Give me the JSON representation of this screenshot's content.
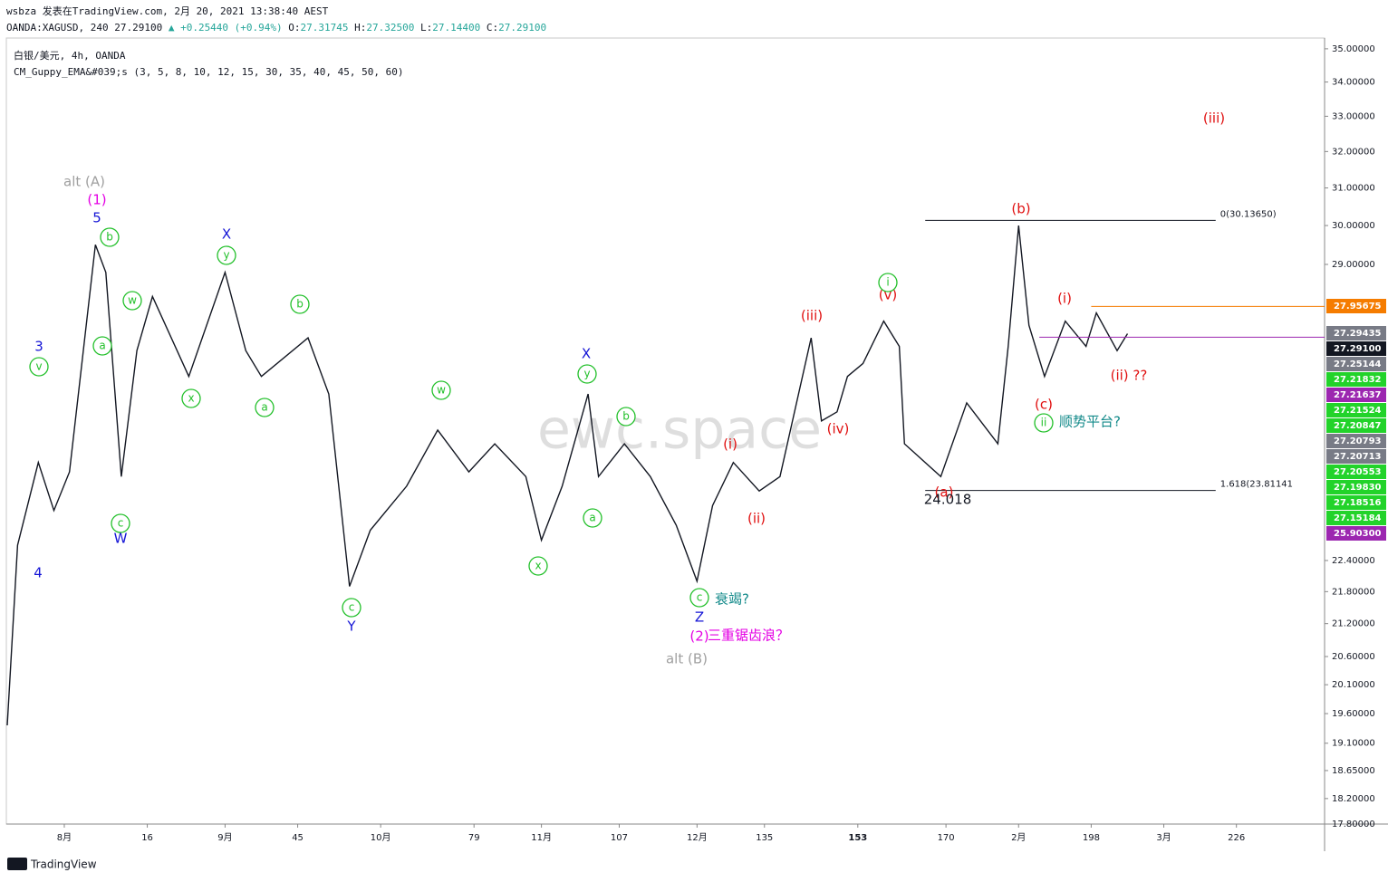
{
  "header": {
    "publisher": "wsbza 发表在TradingView.com, 2月 20, 2021 13:38:40 AEST",
    "symbol": "OANDA:XAGUSD, 240",
    "last": "27.29100",
    "change": "▲ +0.25440 (+0.94%)",
    "ohlc": [
      "O:",
      "27.31745",
      "H:",
      "27.32500",
      "L:",
      "27.14400",
      "C:",
      "27.29100"
    ],
    "pane_title": "白银/美元, 4h, OANDA",
    "indicator": "CM_Guppy_EMA&#039;s (3, 5, 8, 10, 12, 15, 30, 35, 40, 45, 50, 60)"
  },
  "watermark": "ewc.space",
  "footer": "TradingView",
  "chart_data": {
    "type": "line",
    "log_scale": true,
    "grid": false,
    "xlim": [
      -11,
      243
    ],
    "ylim": [
      17.8,
      35.33
    ],
    "xticks": [
      {
        "value": 0,
        "label": "8月"
      },
      16,
      {
        "value": 31,
        "label": "9月"
      },
      45,
      {
        "value": 61,
        "label": "10月"
      },
      79,
      {
        "value": 92,
        "label": "11月"
      },
      107,
      {
        "value": 122,
        "label": "12月"
      },
      135,
      153,
      170,
      {
        "value": 184,
        "label": "2月"
      },
      198,
      {
        "value": 212,
        "label": "3月"
      },
      226
    ],
    "xtick_bold": [
      153
    ],
    "yticks": [
      {
        "value": 35,
        "label": "35.00000"
      },
      {
        "value": 34,
        "label": "34.00000"
      },
      {
        "value": 33,
        "label": "33.00000"
      },
      {
        "value": 32,
        "label": "32.00000"
      },
      {
        "value": 31,
        "label": "31.00000"
      },
      {
        "value": 30,
        "label": "30.00000"
      },
      {
        "value": 29,
        "label": "29.00000"
      },
      {
        "value": 22.4,
        "label": "22.40000"
      },
      {
        "value": 21.8,
        "label": "21.80000"
      },
      {
        "value": 21.2,
        "label": "21.20000"
      },
      {
        "value": 20.6,
        "label": "20.60000"
      },
      {
        "value": 20.1,
        "label": "20.10000"
      },
      {
        "value": 19.6,
        "label": "19.60000"
      },
      {
        "value": 19.1,
        "label": "19.10000"
      },
      {
        "value": 18.65,
        "label": "18.65000"
      },
      {
        "value": 18.2,
        "label": "18.20000"
      },
      {
        "value": 17.8,
        "label": "17.80000"
      }
    ],
    "series": [
      {
        "name": "XAGUSD",
        "color": "#131722",
        "x": [
          -11,
          -9,
          -5,
          -2,
          1,
          6,
          8,
          11,
          14,
          17,
          24,
          31,
          35,
          38,
          47,
          51,
          55,
          59,
          66,
          72,
          78,
          83,
          89,
          92,
          96,
          101,
          103,
          108,
          113,
          118,
          122,
          125,
          129,
          134,
          138,
          144,
          146,
          149,
          151,
          154,
          158,
          161,
          162,
          169,
          174,
          180,
          182,
          184,
          186,
          189,
          193,
          197,
          199,
          203,
          205
        ],
        "values": [
          19.4,
          22.7,
          24.4,
          23.4,
          24.2,
          29.5,
          28.8,
          24.1,
          26.9,
          28.2,
          26.3,
          28.8,
          26.9,
          26.3,
          27.2,
          25.9,
          21.9,
          23.0,
          23.9,
          25.1,
          24.2,
          24.8,
          24.1,
          22.8,
          23.9,
          25.9,
          24.1,
          24.8,
          24.1,
          23.1,
          22.0,
          23.5,
          24.4,
          23.8,
          24.1,
          27.2,
          25.3,
          25.5,
          26.3,
          26.6,
          27.6,
          27.0,
          24.8,
          24.1,
          25.7,
          24.8,
          27.0,
          30.0,
          27.5,
          26.3,
          27.6,
          27.0,
          27.8,
          26.9,
          27.3
        ]
      }
    ],
    "levels": [
      {
        "value": 30.1365,
        "label": "0(30.13650)",
        "color": "#131722",
        "from": 166,
        "to": 222
      },
      {
        "value": 23.81141,
        "label": "1.618(23.81141",
        "color": "#131722",
        "from": 166,
        "to": 222
      },
      {
        "value": 27.95675,
        "color": "#f57c00",
        "from": 198,
        "to": 243
      },
      {
        "value": 27.21637,
        "color": "#9c27b0",
        "from": 188,
        "to": 243
      }
    ],
    "price_badges": [
      {
        "label": "27.95675",
        "color": "#f57c00"
      },
      {
        "label": "27.29435",
        "color": "#787b86"
      },
      {
        "label": "27.29100",
        "color": "#131722"
      },
      {
        "label": "27.25144",
        "color": "#787b86"
      },
      {
        "label": "27.21832",
        "color": "#22d32a"
      },
      {
        "label": "27.21637",
        "color": "#9c27b0"
      },
      {
        "label": "27.21524",
        "color": "#22d32a"
      },
      {
        "label": "27.20847",
        "color": "#22d32a"
      },
      {
        "label": "27.20793",
        "color": "#787b86"
      },
      {
        "label": "27.20713",
        "color": "#787b86"
      },
      {
        "label": "27.20553",
        "color": "#22d32a"
      },
      {
        "label": "27.19830",
        "color": "#22d32a"
      },
      {
        "label": "27.18516",
        "color": "#22d32a"
      },
      {
        "label": "27.15184",
        "color": "#22d32a"
      },
      {
        "label": "25.90300",
        "color": "#9c27b0"
      }
    ],
    "annotations": [
      {
        "text": "alt (A)",
        "color": "#a0a0a0"
      },
      {
        "text": "(1)",
        "color": "#e400e4"
      },
      {
        "text": "5",
        "color": "#1515d6"
      },
      {
        "text": "b",
        "color": "#22c02a",
        "circled": true
      },
      {
        "text": "w",
        "color": "#22c02a",
        "circled": true
      },
      {
        "text": "a",
        "color": "#22c02a",
        "circled": true
      },
      {
        "text": "3",
        "color": "#1515d6"
      },
      {
        "text": "v",
        "color": "#22c02a",
        "circled": true
      },
      {
        "text": "c",
        "color": "#22c02a",
        "circled": true
      },
      {
        "text": "W",
        "color": "#1515d6"
      },
      {
        "text": "4",
        "color": "#1515d6"
      },
      {
        "text": "X",
        "color": "#1515d6"
      },
      {
        "text": "y",
        "color": "#22c02a",
        "circled": true
      },
      {
        "text": "x",
        "color": "#22c02a",
        "circled": true
      },
      {
        "text": "b",
        "color": "#22c02a",
        "circled": true
      },
      {
        "text": "a",
        "color": "#22c02a",
        "circled": true
      },
      {
        "text": "c",
        "color": "#22c02a",
        "circled": true
      },
      {
        "text": "Y",
        "color": "#1515d6"
      },
      {
        "text": "w",
        "color": "#22c02a",
        "circled": true
      },
      {
        "text": "X",
        "color": "#1515d6"
      },
      {
        "text": "y",
        "color": "#22c02a",
        "circled": true
      },
      {
        "text": "b",
        "color": "#22c02a",
        "circled": true
      },
      {
        "text": "a",
        "color": "#22c02a",
        "circled": true
      },
      {
        "text": "x",
        "color": "#22c02a",
        "circled": true
      },
      {
        "text": "c",
        "color": "#22c02a",
        "circled": true
      },
      {
        "text": "衰竭?",
        "color": "#138a8a"
      },
      {
        "text": "Z",
        "color": "#1515d6"
      },
      {
        "text": "(2)",
        "color": "#e400e4"
      },
      {
        "text": "三重锯齿浪？",
        "color": "#e400e4"
      },
      {
        "text": "alt (B)",
        "color": "#a0a0a0"
      },
      {
        "text": "(i)",
        "color": "#e01010"
      },
      {
        "text": "(ii)",
        "color": "#e01010"
      },
      {
        "text": "(iii)",
        "color": "#e01010"
      },
      {
        "text": "(iv)",
        "color": "#e01010"
      },
      {
        "text": "(v)",
        "color": "#e01010"
      },
      {
        "text": "i",
        "color": "#22c02a",
        "circled": true
      },
      {
        "text": "(a)",
        "color": "#e01010"
      },
      {
        "text": "24.018",
        "color": "#131722"
      },
      {
        "text": "(b)",
        "color": "#e01010"
      },
      {
        "text": "(c)",
        "color": "#e01010"
      },
      {
        "text": "ii",
        "color": "#22c02a",
        "circled": true
      },
      {
        "text": "顺势平台?",
        "color": "#138a8a"
      },
      {
        "text": "(i)",
        "color": "#e01010"
      },
      {
        "text": "(ii) ??",
        "color": "#e01010"
      },
      {
        "text": "(iii)",
        "color": "#e01010"
      }
    ]
  }
}
